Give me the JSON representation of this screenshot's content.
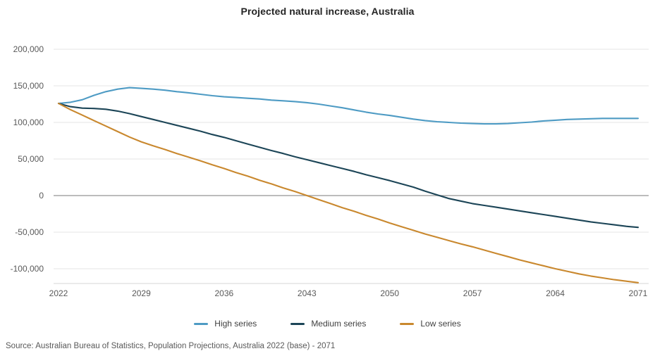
{
  "title": "Projected natural increase, Australia",
  "source": "Source: Australian Bureau of Statistics, Population Projections, Australia 2022 (base) - 2071",
  "colors": {
    "grid": "#e6e6e6",
    "zero_line": "#a6a6a6",
    "axis_line": "#d6d6d6",
    "title_text": "#252525",
    "tick_text": "#595959",
    "legend_text": "#3f3f3f",
    "high_series": "#4e9bc4",
    "medium_series": "#1c4557",
    "low_series": "#c9882e"
  },
  "chart_data": {
    "type": "line",
    "title": "Projected natural increase, Australia",
    "xlabel": "",
    "ylabel": "",
    "xlim": [
      2022,
      2071
    ],
    "ylim": [
      -120000,
      210000
    ],
    "grid": "horizontal",
    "legend_position": "bottom-center",
    "x_ticks": [
      "2022",
      "2029",
      "2036",
      "2043",
      "2050",
      "2057",
      "2064",
      "2071"
    ],
    "y_ticks": [
      200000,
      150000,
      100000,
      50000,
      0,
      -50000,
      -100000
    ],
    "y_tick_labels": [
      "200,000",
      "150,000",
      "100,000",
      "50,000",
      "0",
      "-50,000",
      "-100,000"
    ],
    "series": [
      {
        "name": "High series",
        "color": "#4e9bc4",
        "points": [
          [
            2022,
            126000
          ],
          [
            2023,
            127500
          ],
          [
            2024,
            131000
          ],
          [
            2025,
            137000
          ],
          [
            2026,
            142000
          ],
          [
            2027,
            145500
          ],
          [
            2028,
            147500
          ],
          [
            2029,
            146500
          ],
          [
            2030,
            145500
          ],
          [
            2031,
            144000
          ],
          [
            2032,
            142000
          ],
          [
            2033,
            140500
          ],
          [
            2034,
            138500
          ],
          [
            2035,
            136500
          ],
          [
            2036,
            135000
          ],
          [
            2037,
            134000
          ],
          [
            2038,
            133000
          ],
          [
            2039,
            132000
          ],
          [
            2040,
            130500
          ],
          [
            2041,
            129500
          ],
          [
            2042,
            128500
          ],
          [
            2043,
            127000
          ],
          [
            2044,
            125000
          ],
          [
            2045,
            122500
          ],
          [
            2046,
            120000
          ],
          [
            2047,
            117000
          ],
          [
            2048,
            114000
          ],
          [
            2049,
            111500
          ],
          [
            2050,
            109500
          ],
          [
            2051,
            107000
          ],
          [
            2052,
            104500
          ],
          [
            2053,
            102500
          ],
          [
            2054,
            101000
          ],
          [
            2055,
            100000
          ],
          [
            2056,
            99000
          ],
          [
            2057,
            98500
          ],
          [
            2058,
            98000
          ],
          [
            2059,
            98000
          ],
          [
            2060,
            98500
          ],
          [
            2061,
            99500
          ],
          [
            2062,
            100500
          ],
          [
            2063,
            102000
          ],
          [
            2064,
            103000
          ],
          [
            2065,
            104000
          ],
          [
            2066,
            104500
          ],
          [
            2067,
            105000
          ],
          [
            2068,
            105500
          ],
          [
            2069,
            105500
          ],
          [
            2070,
            105500
          ],
          [
            2071,
            105500
          ]
        ]
      },
      {
        "name": "Medium series",
        "color": "#1c4557",
        "points": [
          [
            2022,
            126000
          ],
          [
            2023,
            121500
          ],
          [
            2024,
            119500
          ],
          [
            2025,
            119000
          ],
          [
            2026,
            118000
          ],
          [
            2027,
            115500
          ],
          [
            2028,
            112000
          ],
          [
            2029,
            108000
          ],
          [
            2030,
            104000
          ],
          [
            2031,
            100000
          ],
          [
            2032,
            96000
          ],
          [
            2033,
            92000
          ],
          [
            2034,
            88000
          ],
          [
            2035,
            83500
          ],
          [
            2036,
            79500
          ],
          [
            2037,
            75000
          ],
          [
            2038,
            70500
          ],
          [
            2039,
            66000
          ],
          [
            2040,
            61500
          ],
          [
            2041,
            57500
          ],
          [
            2042,
            53000
          ],
          [
            2043,
            49000
          ],
          [
            2044,
            45000
          ],
          [
            2045,
            41000
          ],
          [
            2046,
            37000
          ],
          [
            2047,
            33000
          ],
          [
            2048,
            28500
          ],
          [
            2049,
            24500
          ],
          [
            2050,
            20500
          ],
          [
            2051,
            16000
          ],
          [
            2052,
            11500
          ],
          [
            2053,
            6000
          ],
          [
            2054,
            1000
          ],
          [
            2055,
            -4000
          ],
          [
            2056,
            -7500
          ],
          [
            2057,
            -11000
          ],
          [
            2058,
            -13500
          ],
          [
            2059,
            -16000
          ],
          [
            2060,
            -18500
          ],
          [
            2061,
            -21000
          ],
          [
            2062,
            -23500
          ],
          [
            2063,
            -26000
          ],
          [
            2064,
            -28500
          ],
          [
            2065,
            -31000
          ],
          [
            2066,
            -33500
          ],
          [
            2067,
            -36000
          ],
          [
            2068,
            -38000
          ],
          [
            2069,
            -40000
          ],
          [
            2070,
            -42000
          ],
          [
            2071,
            -43500
          ]
        ]
      },
      {
        "name": "Low series",
        "color": "#c9882e",
        "points": [
          [
            2022,
            126000
          ],
          [
            2023,
            117500
          ],
          [
            2024,
            110000
          ],
          [
            2025,
            102500
          ],
          [
            2026,
            95000
          ],
          [
            2027,
            87500
          ],
          [
            2028,
            80000
          ],
          [
            2029,
            73500
          ],
          [
            2030,
            68000
          ],
          [
            2031,
            63000
          ],
          [
            2032,
            57500
          ],
          [
            2033,
            52500
          ],
          [
            2034,
            47500
          ],
          [
            2035,
            42000
          ],
          [
            2036,
            37000
          ],
          [
            2037,
            31500
          ],
          [
            2038,
            26500
          ],
          [
            2039,
            21000
          ],
          [
            2040,
            16000
          ],
          [
            2041,
            10500
          ],
          [
            2042,
            5500
          ],
          [
            2043,
            0
          ],
          [
            2044,
            -5500
          ],
          [
            2045,
            -11000
          ],
          [
            2046,
            -16500
          ],
          [
            2047,
            -21500
          ],
          [
            2048,
            -27000
          ],
          [
            2049,
            -32000
          ],
          [
            2050,
            -37500
          ],
          [
            2051,
            -42500
          ],
          [
            2052,
            -47500
          ],
          [
            2053,
            -52500
          ],
          [
            2054,
            -57000
          ],
          [
            2055,
            -61500
          ],
          [
            2056,
            -66000
          ],
          [
            2057,
            -70000
          ],
          [
            2058,
            -74500
          ],
          [
            2059,
            -79000
          ],
          [
            2060,
            -83500
          ],
          [
            2061,
            -88000
          ],
          [
            2062,
            -92000
          ],
          [
            2063,
            -96000
          ],
          [
            2064,
            -100000
          ],
          [
            2065,
            -103500
          ],
          [
            2066,
            -107000
          ],
          [
            2067,
            -110000
          ],
          [
            2068,
            -112500
          ],
          [
            2069,
            -115000
          ],
          [
            2070,
            -117000
          ],
          [
            2071,
            -119000
          ]
        ]
      }
    ]
  }
}
